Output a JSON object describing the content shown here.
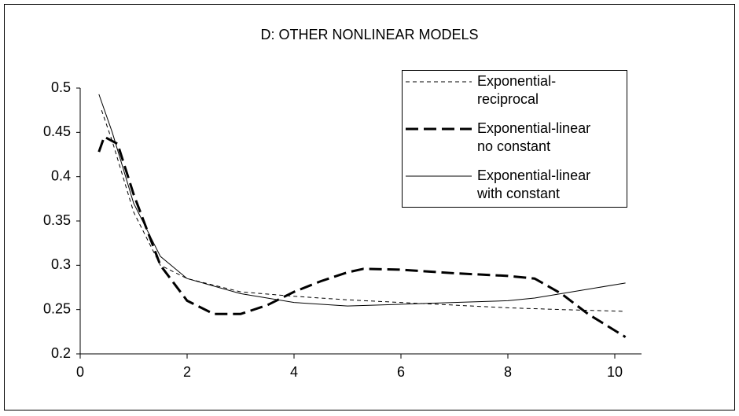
{
  "chart_data": {
    "type": "line",
    "title": "D: OTHER NONLINEAR MODELS",
    "xlim": [
      0,
      10.5
    ],
    "xticks": [
      0,
      2,
      4,
      6,
      8,
      10
    ],
    "ylim": [
      0.2,
      0.5
    ],
    "yticks": [
      0.2,
      0.25,
      0.3,
      0.35,
      0.4,
      0.45,
      0.5
    ],
    "grid": false,
    "legend": "upper right",
    "series": [
      {
        "name": "Exponential-reciprocal",
        "color": "#000000",
        "style": "thin-dashed",
        "x": [
          0.4,
          0.6,
          1,
          1.5,
          2,
          3,
          4,
          5,
          6,
          7,
          8,
          9,
          10.2
        ],
        "values": [
          0.475,
          0.44,
          0.36,
          0.3,
          0.285,
          0.27,
          0.265,
          0.261,
          0.258,
          0.255,
          0.252,
          0.25,
          0.248
        ]
      },
      {
        "name": "Exponential-linear no constant",
        "color": "#000000",
        "style": "thick-dashed",
        "x": [
          0.35,
          0.45,
          0.7,
          1,
          1.5,
          2,
          2.5,
          3,
          3.5,
          4,
          4.5,
          5,
          5.3,
          6,
          7,
          8,
          8.5,
          9,
          9.5,
          10.2
        ],
        "values": [
          0.428,
          0.445,
          0.437,
          0.38,
          0.3,
          0.26,
          0.245,
          0.245,
          0.255,
          0.27,
          0.282,
          0.292,
          0.296,
          0.295,
          0.291,
          0.288,
          0.285,
          0.268,
          0.245,
          0.219
        ]
      },
      {
        "name": "Exponential-linear with constant",
        "color": "#000000",
        "style": "thin-solid",
        "x": [
          0.35,
          0.6,
          1,
          1.5,
          2,
          3,
          4,
          5,
          6,
          7,
          8,
          8.5,
          9,
          9.5,
          10.2
        ],
        "values": [
          0.493,
          0.45,
          0.37,
          0.31,
          0.285,
          0.268,
          0.258,
          0.254,
          0.256,
          0.258,
          0.26,
          0.263,
          0.268,
          0.273,
          0.28
        ]
      }
    ]
  }
}
